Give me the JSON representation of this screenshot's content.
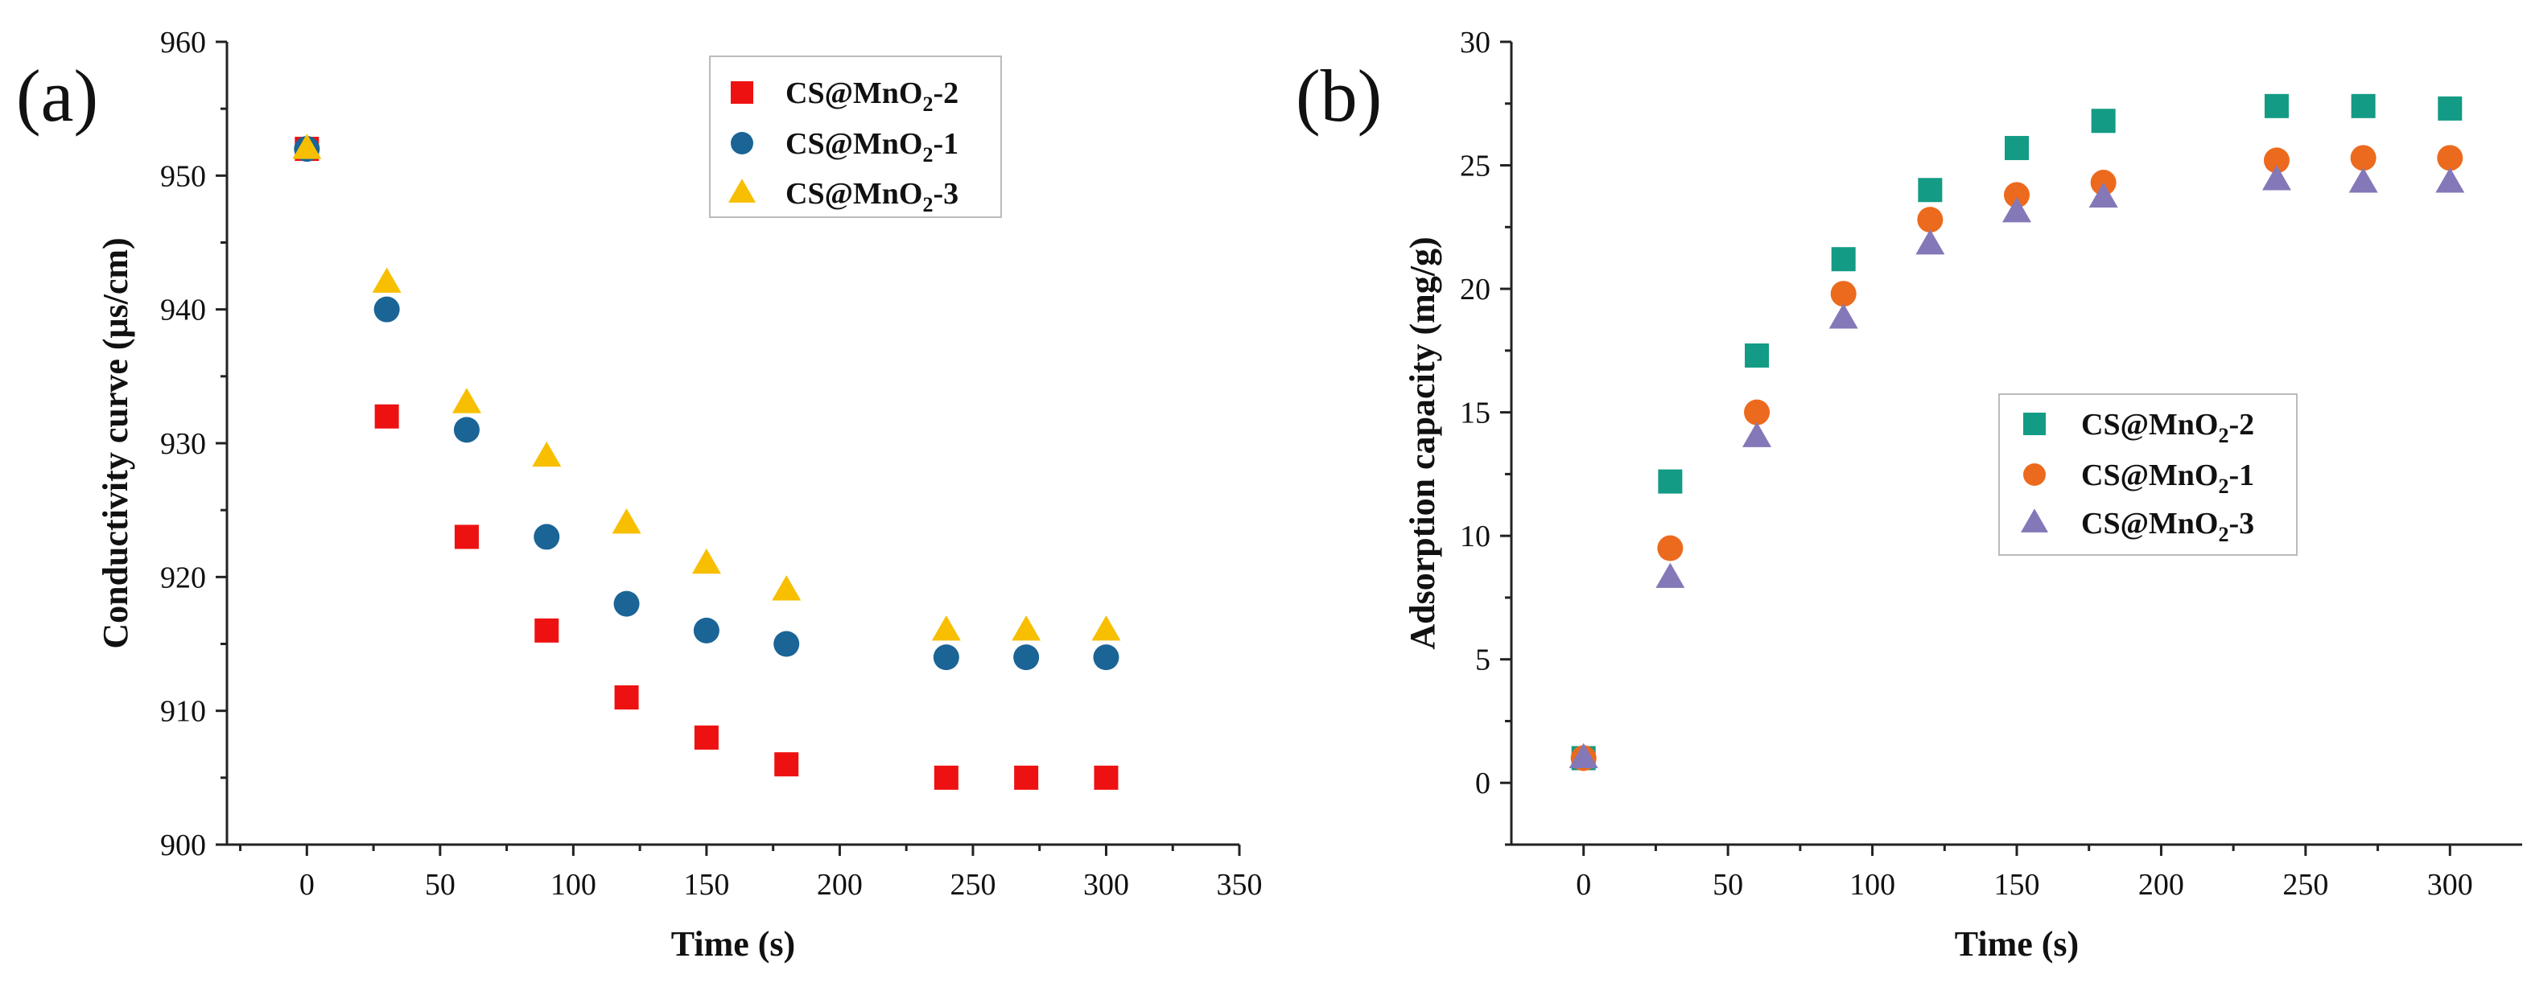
{
  "chart_data": [
    {
      "panel_label": "(a)",
      "type": "scatter",
      "xlabel": "Time (s)",
      "ylabel": "Conductivity curve (μs/cm)",
      "xlim": [
        -30,
        350
      ],
      "ylim": [
        900,
        960
      ],
      "xticks": [
        0,
        50,
        100,
        150,
        200,
        250,
        300,
        350
      ],
      "yticks": [
        900,
        910,
        920,
        930,
        940,
        950,
        960
      ],
      "legend_position": "top-right",
      "x": [
        0,
        30,
        60,
        90,
        120,
        150,
        180,
        240,
        270,
        300
      ],
      "series": [
        {
          "name_main": "CS@MnO",
          "name_sub": "2",
          "name_suffix": "-2",
          "marker": "square",
          "color": "#ee1111",
          "values": [
            952,
            932,
            923,
            916,
            911,
            908,
            906,
            905,
            905,
            905
          ]
        },
        {
          "name_main": "CS@MnO",
          "name_sub": "2",
          "name_suffix": "-1",
          "marker": "circle",
          "color": "#1a6496",
          "values": [
            952,
            940,
            931,
            923,
            918,
            916,
            915,
            914,
            914,
            914
          ]
        },
        {
          "name_main": "CS@MnO",
          "name_sub": "2",
          "name_suffix": "-3",
          "marker": "triangle",
          "color": "#f7bf00",
          "values": [
            952,
            942,
            933,
            929,
            924,
            921,
            919,
            916,
            916,
            916
          ]
        }
      ]
    },
    {
      "panel_label": "(b)",
      "type": "scatter",
      "xlabel": "Time (s)",
      "ylabel": "Adsorption capacity (mg/g)",
      "xlim": [
        -25,
        325
      ],
      "ylim": [
        -2.5,
        30
      ],
      "xticks": [
        0,
        50,
        100,
        150,
        200,
        250,
        300
      ],
      "yticks": [
        0,
        5,
        10,
        15,
        20,
        25,
        30
      ],
      "legend_position": "center-right",
      "x": [
        0,
        30,
        60,
        90,
        120,
        150,
        180,
        240,
        270,
        300
      ],
      "series": [
        {
          "name_main": "CS@MnO",
          "name_sub": "2",
          "name_suffix": "-2",
          "marker": "square",
          "color": "#139b85",
          "values": [
            1.0,
            12.2,
            17.3,
            21.2,
            24.0,
            25.7,
            26.8,
            27.4,
            27.4,
            27.3
          ]
        },
        {
          "name_main": "CS@MnO",
          "name_sub": "2",
          "name_suffix": "-1",
          "marker": "circle",
          "color": "#ec6a1d",
          "values": [
            1.0,
            9.5,
            15.0,
            19.8,
            22.8,
            23.8,
            24.3,
            25.2,
            25.3,
            25.3
          ]
        },
        {
          "name_main": "CS@MnO",
          "name_sub": "2",
          "name_suffix": "-3",
          "marker": "triangle",
          "color": "#8478b8",
          "values": [
            1.0,
            8.3,
            14.0,
            18.8,
            21.8,
            23.1,
            23.7,
            24.4,
            24.3,
            24.3
          ]
        }
      ]
    }
  ]
}
